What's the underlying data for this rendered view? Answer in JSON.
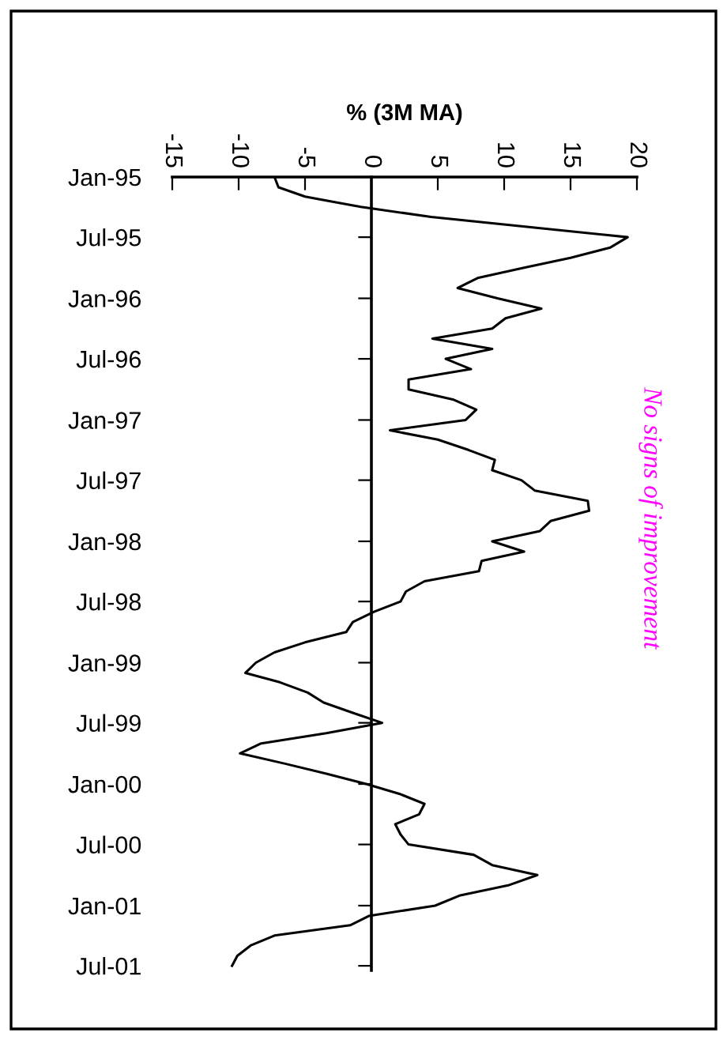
{
  "chart_data": {
    "type": "line",
    "orientation": "horizontal",
    "xlabel": "% (3M MA)",
    "x": [
      "1995-01",
      "1995-02",
      "1995-03",
      "1995-04",
      "1995-05",
      "1995-06",
      "1995-07",
      "1995-08",
      "1995-09",
      "1995-10",
      "1995-11",
      "1995-12",
      "1996-01",
      "1996-02",
      "1996-03",
      "1996-04",
      "1996-05",
      "1996-06",
      "1996-07",
      "1996-08",
      "1996-09",
      "1996-10",
      "1996-11",
      "1996-12",
      "1997-01",
      "1997-02",
      "1997-03",
      "1997-04",
      "1997-05",
      "1997-06",
      "1997-07",
      "1997-08",
      "1997-09",
      "1997-10",
      "1997-11",
      "1997-12",
      "1998-01",
      "1998-02",
      "1998-03",
      "1998-04",
      "1998-05",
      "1998-06",
      "1998-07",
      "1998-08",
      "1998-09",
      "1998-10",
      "1998-11",
      "1998-12",
      "1999-01",
      "1999-02",
      "1999-03",
      "1999-04",
      "1999-05",
      "1999-06",
      "1999-07",
      "1999-08",
      "1999-09",
      "1999-10",
      "1999-11",
      "1999-12",
      "2000-01",
      "2000-02",
      "2000-03",
      "2000-04",
      "2000-05",
      "2000-06",
      "2000-07",
      "2000-08",
      "2000-09",
      "2000-10",
      "2000-11",
      "2000-12",
      "2001-01",
      "2001-02",
      "2001-03",
      "2001-04",
      "2001-05",
      "2001-06",
      "2001-07"
    ],
    "series": [
      {
        "color": "#000000",
        "values": [
          -7.3,
          -7.0,
          -5.0,
          -0.8,
          4.5,
          12.0,
          19.3,
          18.0,
          15.0,
          11.5,
          8.0,
          6.5,
          9.5,
          12.8,
          10.1,
          9.1,
          4.6,
          9.1,
          5.6,
          7.5,
          2.8,
          2.8,
          6.2,
          7.9,
          7.1,
          1.4,
          5.0,
          7.3,
          9.3,
          9.1,
          11.3,
          12.3,
          16.3,
          16.4,
          13.5,
          12.7,
          9.1,
          11.5,
          8.3,
          8.1,
          4.0,
          2.6,
          2.2,
          0.2,
          -1.4,
          -1.9,
          -5.0,
          -7.3,
          -8.7,
          -9.5,
          -6.9,
          -4.8,
          -3.6,
          -1.4,
          0.8,
          -3.4,
          -8.3,
          -9.9,
          -6.5,
          -3.4,
          -0.4,
          2.2,
          4.0,
          3.6,
          1.8,
          2.2,
          2.8,
          7.7,
          9.1,
          12.5,
          10.3,
          6.7,
          4.8,
          -0.2,
          -1.6,
          -7.3,
          -9.1,
          -10.1,
          -10.5
        ]
      }
    ],
    "xlim": [
      -15,
      20
    ],
    "xticks": [
      -15,
      -10,
      -5,
      0,
      5,
      10,
      15,
      20
    ],
    "ylim": [
      "2001-07-15",
      "1995-01"
    ],
    "yticks": [
      {
        "value": "1995-01",
        "label": "Jan-95"
      },
      {
        "value": "1995-07",
        "label": "Jul-95"
      },
      {
        "value": "1996-01",
        "label": "Jan-96"
      },
      {
        "value": "1996-07",
        "label": "Jul-96"
      },
      {
        "value": "1997-01",
        "label": "Jan-97"
      },
      {
        "value": "1997-07",
        "label": "Jul-97"
      },
      {
        "value": "1998-01",
        "label": "Jan-98"
      },
      {
        "value": "1998-07",
        "label": "Jul-98"
      },
      {
        "value": "1999-01",
        "label": "Jan-99"
      },
      {
        "value": "1999-07",
        "label": "Jul-99"
      },
      {
        "value": "2000-01",
        "label": "Jan-00"
      },
      {
        "value": "2000-07",
        "label": "Jul-00"
      },
      {
        "value": "2001-01",
        "label": "Jan-01"
      },
      {
        "value": "2001-07",
        "label": "Jul-01"
      }
    ],
    "annotations": [
      "No signs of improvement"
    ],
    "marker": "none",
    "line_style": "solid"
  }
}
